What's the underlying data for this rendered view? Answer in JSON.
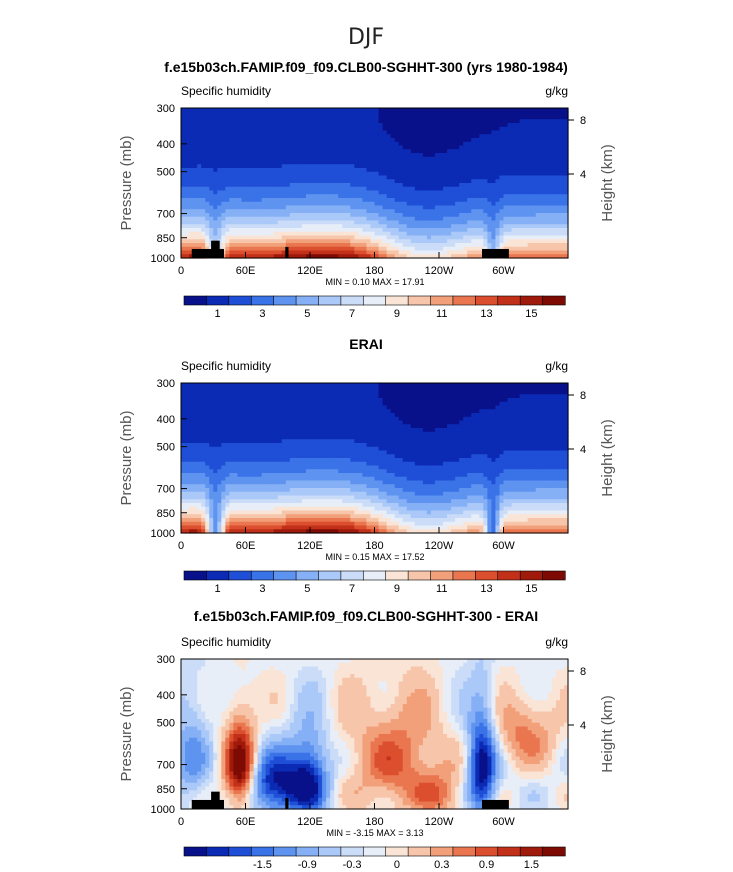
{
  "figure": {
    "title": "DJF"
  },
  "chart_data": [
    {
      "type": "heatmap",
      "title": "f.e15b03ch.FAMIP.f09_f09.CLB00-SGHHT-300 (yrs 1980-1984)",
      "left_label": "Specific humidity",
      "units": "g/kg",
      "ylabel": "Pressure (mb)",
      "ylabel_right": "Height (km)",
      "x_ticks": [
        "0",
        "60E",
        "120E",
        "180",
        "120W",
        "60W"
      ],
      "x_tick_lon": [
        0,
        60,
        120,
        180,
        240,
        300
      ],
      "x_range": [
        0,
        360
      ],
      "y_ticks": [
        "300",
        "400",
        "500",
        "700",
        "850",
        "1000"
      ],
      "y_tick_values": [
        300,
        400,
        500,
        700,
        850,
        1000
      ],
      "y_range": [
        300,
        1000
      ],
      "y_right_ticks": [
        "8",
        "4"
      ],
      "stats": "MIN =    0.10   MAX =   17.91",
      "colorbar_labels": [
        "1",
        "3",
        "5",
        "7",
        "9",
        "11",
        "13",
        "15"
      ],
      "colorbar_levels": [
        0,
        1,
        2,
        3,
        4,
        5,
        6,
        7,
        8,
        9,
        10,
        11,
        12,
        13,
        14,
        15,
        16,
        17,
        18
      ],
      "min": 0.1,
      "max": 17.91,
      "kind": "abs",
      "terrain": true
    },
    {
      "type": "heatmap",
      "title": "ERAI",
      "left_label": "Specific humidity",
      "units": "g/kg",
      "ylabel": "Pressure (mb)",
      "ylabel_right": "Height (km)",
      "x_ticks": [
        "0",
        "60E",
        "120E",
        "180",
        "120W",
        "60W"
      ],
      "x_tick_lon": [
        0,
        60,
        120,
        180,
        240,
        300
      ],
      "x_range": [
        0,
        360
      ],
      "y_ticks": [
        "300",
        "400",
        "500",
        "700",
        "850",
        "1000"
      ],
      "y_tick_values": [
        300,
        400,
        500,
        700,
        850,
        1000
      ],
      "y_range": [
        300,
        1000
      ],
      "y_right_ticks": [
        "8",
        "4"
      ],
      "stats": "MIN =    0.15   MAX =   17.52",
      "colorbar_labels": [
        "1",
        "3",
        "5",
        "7",
        "9",
        "11",
        "13",
        "15"
      ],
      "colorbar_levels": [
        0,
        1,
        2,
        3,
        4,
        5,
        6,
        7,
        8,
        9,
        10,
        11,
        12,
        13,
        14,
        15,
        16,
        17,
        18
      ],
      "min": 0.15,
      "max": 17.52,
      "kind": "abs",
      "terrain": false
    },
    {
      "type": "heatmap",
      "title": "f.e15b03ch.FAMIP.f09_f09.CLB00-SGHHT-300 - ERAI",
      "left_label": "Specific humidity",
      "units": "g/kg",
      "ylabel": "Pressure (mb)",
      "ylabel_right": "Height (km)",
      "x_ticks": [
        "0",
        "60E",
        "120E",
        "180",
        "120W",
        "60W"
      ],
      "x_tick_lon": [
        0,
        60,
        120,
        180,
        240,
        300
      ],
      "x_range": [
        0,
        360
      ],
      "y_ticks": [
        "300",
        "400",
        "500",
        "700",
        "850",
        "1000"
      ],
      "y_tick_values": [
        300,
        400,
        500,
        700,
        850,
        1000
      ],
      "y_range": [
        300,
        1000
      ],
      "y_right_ticks": [
        "8",
        "4"
      ],
      "stats": "MIN =   -3.15   MAX =    3.13",
      "colorbar_labels": [
        "-1.5",
        "-0.9",
        "-0.3",
        "0",
        "0.3",
        "0.9",
        "1.5"
      ],
      "colorbar_levels": [
        -2.4,
        -2.1,
        -1.8,
        -1.5,
        -1.2,
        -0.9,
        -0.6,
        -0.3,
        -0.1,
        0.1,
        0.3,
        0.6,
        0.9,
        1.2,
        1.5,
        1.8,
        2.1,
        2.4
      ],
      "min": -3.15,
      "max": 3.13,
      "kind": "diff",
      "terrain": true
    }
  ],
  "colors": {
    "palette": [
      "#08108a",
      "#0b2bb5",
      "#1f4fd6",
      "#3a72e8",
      "#5f93f0",
      "#86b0f5",
      "#aac8f8",
      "#cadcf8",
      "#e8eef8",
      "#fae4d6",
      "#f7c6aa",
      "#f2a07a",
      "#ea7650",
      "#db4e2e",
      "#c2301a",
      "#a01a0c",
      "#7e0a04"
    ],
    "terrain": "#000000"
  }
}
